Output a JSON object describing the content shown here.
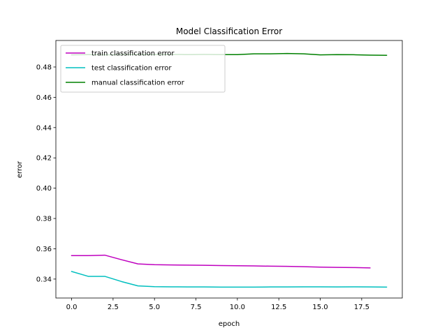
{
  "chart_data": {
    "type": "line",
    "title": "Model Classification Error",
    "xlabel": "epoch",
    "ylabel": "error",
    "xlim": [
      -0.95,
      19.95
    ],
    "ylim": [
      0.3275,
      0.4975
    ],
    "xticks": [
      0.0,
      2.5,
      5.0,
      7.5,
      10.0,
      12.5,
      15.0,
      17.5
    ],
    "xtick_labels": [
      "0.0",
      "2.5",
      "5.0",
      "7.5",
      "10.0",
      "12.5",
      "15.0",
      "17.5"
    ],
    "yticks": [
      0.34,
      0.36,
      0.38,
      0.4,
      0.42,
      0.44,
      0.46,
      0.48
    ],
    "ytick_labels": [
      "0.34",
      "0.36",
      "0.38",
      "0.40",
      "0.42",
      "0.44",
      "0.46",
      "0.48"
    ],
    "grid": false,
    "legend": "top-left",
    "series": [
      {
        "name": "train classification error",
        "color": "#bf00bf",
        "x": [
          0,
          1,
          2,
          3,
          4,
          5,
          6,
          7,
          8,
          9,
          10,
          11,
          12,
          13,
          14,
          15,
          16,
          17,
          18
        ],
        "values": [
          0.3555,
          0.3555,
          0.3558,
          0.3528,
          0.35,
          0.3495,
          0.3493,
          0.3492,
          0.3491,
          0.3489,
          0.3488,
          0.3487,
          0.3485,
          0.3484,
          0.3482,
          0.3479,
          0.3477,
          0.3476,
          0.3474
        ]
      },
      {
        "name": "test classification error",
        "color": "#00bfbf",
        "x": [
          0,
          1,
          2,
          3,
          4,
          5,
          6,
          7,
          8,
          9,
          10,
          11,
          12,
          13,
          14,
          15,
          16,
          17,
          18,
          19
        ],
        "values": [
          0.345,
          0.3418,
          0.3418,
          0.3384,
          0.3355,
          0.335,
          0.3349,
          0.3348,
          0.3348,
          0.3347,
          0.3347,
          0.3347,
          0.3348,
          0.3348,
          0.3349,
          0.3349,
          0.3348,
          0.3349,
          0.3348,
          0.3347
        ]
      },
      {
        "name": "manual classification error",
        "color": "#008000",
        "x": [
          0,
          1,
          2,
          3,
          4,
          5,
          6,
          7,
          8,
          9,
          10,
          11,
          12,
          13,
          14,
          15,
          16,
          17,
          18,
          19
        ],
        "values": [
          0.488,
          0.4882,
          0.488,
          0.4882,
          0.4883,
          0.4882,
          0.4883,
          0.4882,
          0.4883,
          0.4882,
          0.4882,
          0.4887,
          0.4887,
          0.4889,
          0.4887,
          0.488,
          0.4882,
          0.4881,
          0.4878,
          0.4877
        ]
      }
    ]
  }
}
